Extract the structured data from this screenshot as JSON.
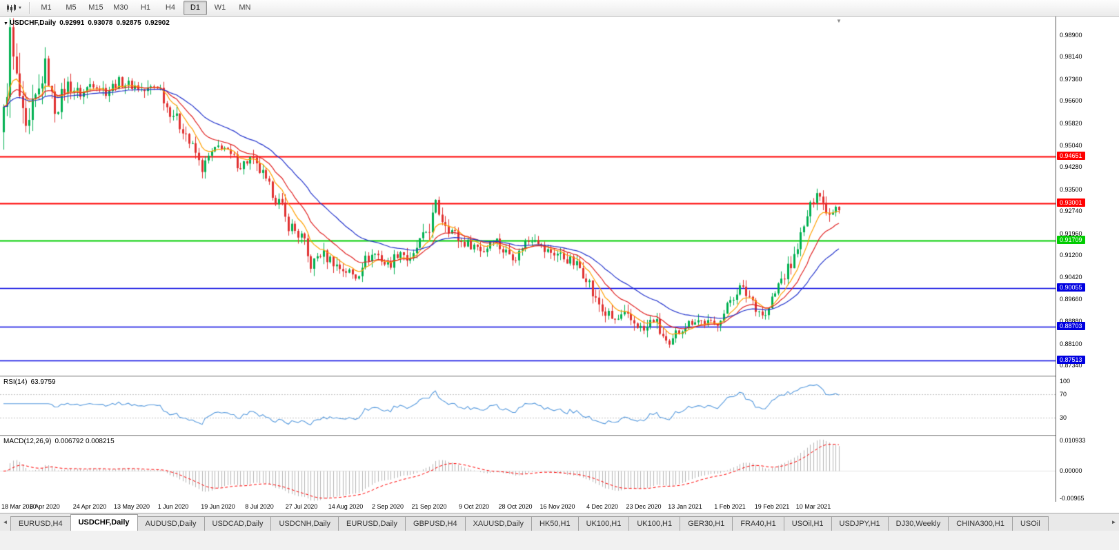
{
  "icons": {
    "caret_down": "▼",
    "chart_menu": "▼",
    "shift_marker": "▼",
    "tabs_left": "◄",
    "tabs_right": "►"
  },
  "toolbar": {
    "chart_type_icon": "candlestick-chart-icon",
    "timeframes": [
      "M1",
      "M5",
      "M15",
      "M30",
      "H1",
      "H4",
      "D1",
      "W1",
      "MN"
    ],
    "active_timeframe": "D1"
  },
  "chart_data": {
    "type": "candlestick",
    "symbol": "USDCHF",
    "timeframe": "Daily",
    "title": "USDCHF,Daily",
    "header": {
      "open": "0.92991",
      "high": "0.93078",
      "low": "0.92875",
      "close": "0.92902"
    },
    "price_axis_labels": [
      "0.98900",
      "0.98140",
      "0.97360",
      "0.96600",
      "0.95820",
      "0.95040",
      "0.94280",
      "0.93500",
      "0.92740",
      "0.91960",
      "0.91200",
      "0.90420",
      "0.89660",
      "0.88880",
      "0.88100",
      "0.87340"
    ],
    "horizontal_lines": [
      {
        "price": 0.94651,
        "label": "0.94651",
        "color": "#FF0000",
        "width": 2
      },
      {
        "price": 0.93001,
        "label": "0.93001",
        "color": "#FF0000",
        "width": 2
      },
      {
        "price": 0.91709,
        "label": "0.91709",
        "color": "#00CC00",
        "width": 2
      },
      {
        "price": 0.90055,
        "label": "0.90055",
        "color": "#0000E0",
        "width": 1.5
      },
      {
        "price": 0.88703,
        "label": "0.88703",
        "color": "#0000E0",
        "width": 1.5
      },
      {
        "price": 0.87513,
        "label": "0.87513",
        "color": "#0000E0",
        "width": 1.5
      }
    ],
    "time_labels": [
      {
        "label": "18 Mar 2020",
        "i": 0
      },
      {
        "label": "6 Apr 2020",
        "i": 13
      },
      {
        "label": "24 Apr 2020",
        "i": 27
      },
      {
        "label": "13 May 2020",
        "i": 40
      },
      {
        "label": "1 Jun 2020",
        "i": 53
      },
      {
        "label": "19 Jun 2020",
        "i": 67
      },
      {
        "label": "8 Jul 2020",
        "i": 80
      },
      {
        "label": "27 Jul 2020",
        "i": 93
      },
      {
        "label": "14 Aug 2020",
        "i": 107
      },
      {
        "label": "2 Sep 2020",
        "i": 120
      },
      {
        "label": "21 Sep 2020",
        "i": 133
      },
      {
        "label": "9 Oct 2020",
        "i": 147
      },
      {
        "label": "28 Oct 2020",
        "i": 160
      },
      {
        "label": "16 Nov 2020",
        "i": 173
      },
      {
        "label": "4 Dec 2020",
        "i": 187
      },
      {
        "label": "23 Dec 2020",
        "i": 200
      },
      {
        "label": "13 Jan 2021",
        "i": 213
      },
      {
        "label": "1 Feb 2021",
        "i": 227
      },
      {
        "label": "19 Feb 2021",
        "i": 240
      },
      {
        "label": "10 Mar 2021",
        "i": 253
      }
    ],
    "num_candles": 262,
    "price_range": {
      "top": 0.9955,
      "bottom": 0.8698
    },
    "up_color": "#00B050",
    "down_color": "#E03030",
    "moving_averages": [
      {
        "period": 8,
        "color": "#FFA000"
      },
      {
        "period": 16,
        "color": "#E02020"
      },
      {
        "period": 34,
        "color": "#2233CC"
      }
    ],
    "price_path": [
      [
        0,
        0.959
      ],
      [
        2,
        0.9875
      ],
      [
        4,
        0.972
      ],
      [
        7,
        0.9525
      ],
      [
        10,
        0.966
      ],
      [
        13,
        0.9775
      ],
      [
        16,
        0.9635
      ],
      [
        20,
        0.9715
      ],
      [
        24,
        0.9685
      ],
      [
        28,
        0.9725
      ],
      [
        32,
        0.9695
      ],
      [
        36,
        0.9725
      ],
      [
        40,
        0.9715
      ],
      [
        44,
        0.9695
      ],
      [
        48,
        0.9715
      ],
      [
        52,
        0.9625
      ],
      [
        56,
        0.9565
      ],
      [
        59,
        0.9495
      ],
      [
        62,
        0.9425
      ],
      [
        65,
        0.9475
      ],
      [
        68,
        0.9505
      ],
      [
        71,
        0.9465
      ],
      [
        74,
        0.9435
      ],
      [
        77,
        0.9455
      ],
      [
        80,
        0.9415
      ],
      [
        83,
        0.9355
      ],
      [
        86,
        0.9305
      ],
      [
        89,
        0.9225
      ],
      [
        93,
        0.9185
      ],
      [
        96,
        0.9085
      ],
      [
        99,
        0.9125
      ],
      [
        102,
        0.9105
      ],
      [
        105,
        0.9075
      ],
      [
        107,
        0.9065
      ],
      [
        110,
        0.9045
      ],
      [
        113,
        0.9105
      ],
      [
        116,
        0.9125
      ],
      [
        120,
        0.9085
      ],
      [
        124,
        0.9135
      ],
      [
        127,
        0.9095
      ],
      [
        130,
        0.9165
      ],
      [
        133,
        0.9215
      ],
      [
        135,
        0.9295
      ],
      [
        137,
        0.9245
      ],
      [
        140,
        0.9205
      ],
      [
        143,
        0.9165
      ],
      [
        147,
        0.9155
      ],
      [
        150,
        0.9135
      ],
      [
        153,
        0.9185
      ],
      [
        156,
        0.9135
      ],
      [
        160,
        0.9115
      ],
      [
        163,
        0.9165
      ],
      [
        166,
        0.9185
      ],
      [
        169,
        0.9135
      ],
      [
        173,
        0.9125
      ],
      [
        176,
        0.9105
      ],
      [
        179,
        0.9085
      ],
      [
        182,
        0.9045
      ],
      [
        185,
        0.896
      ],
      [
        188,
        0.8915
      ],
      [
        191,
        0.889
      ],
      [
        194,
        0.8905
      ],
      [
        197,
        0.8885
      ],
      [
        200,
        0.8855
      ],
      [
        203,
        0.8895
      ],
      [
        206,
        0.8835
      ],
      [
        208,
        0.879
      ],
      [
        210,
        0.8845
      ],
      [
        213,
        0.8875
      ],
      [
        216,
        0.8895
      ],
      [
        219,
        0.8885
      ],
      [
        222,
        0.8875
      ],
      [
        225,
        0.8915
      ],
      [
        227,
        0.8965
      ],
      [
        230,
        0.9005
      ],
      [
        233,
        0.8975
      ],
      [
        236,
        0.8925
      ],
      [
        238,
        0.8905
      ],
      [
        240,
        0.8965
      ],
      [
        243,
        0.9035
      ],
      [
        246,
        0.9085
      ],
      [
        249,
        0.9185
      ],
      [
        252,
        0.9285
      ],
      [
        254,
        0.9355
      ],
      [
        256,
        0.93
      ],
      [
        258,
        0.9265
      ],
      [
        260,
        0.93
      ],
      [
        261,
        0.929
      ]
    ],
    "volatility": [
      [
        0,
        0.017
      ],
      [
        5,
        0.014
      ],
      [
        10,
        0.01
      ],
      [
        16,
        0.007
      ],
      [
        25,
        0.0045
      ],
      [
        40,
        0.004
      ],
      [
        55,
        0.005
      ],
      [
        70,
        0.0042
      ],
      [
        85,
        0.005
      ],
      [
        100,
        0.0045
      ],
      [
        115,
        0.0038
      ],
      [
        133,
        0.005
      ],
      [
        150,
        0.0036
      ],
      [
        170,
        0.0038
      ],
      [
        187,
        0.0045
      ],
      [
        205,
        0.0042
      ],
      [
        220,
        0.0036
      ],
      [
        235,
        0.004
      ],
      [
        250,
        0.0048
      ],
      [
        261,
        0.0042
      ]
    ],
    "indicators": {
      "rsi": {
        "name": "RSI(14)",
        "value": "63.9759",
        "color": "#5599DD",
        "levels": [
          70,
          30
        ],
        "axis_labels": [
          {
            "v": 100,
            "label": "100"
          },
          {
            "v": 70,
            "label": "70"
          },
          {
            "v": 30,
            "label": "30"
          }
        ]
      },
      "macd": {
        "name": "MACD(12,26,9)",
        "values": "0.006792 0.008215",
        "histogram_color": "#B4B4B4",
        "signal_color": "#FF0000",
        "range": {
          "max": 0.010933,
          "min": -0.00965
        },
        "axis_labels": [
          {
            "v": 0.010933,
            "label": "0.010933"
          },
          {
            "v": 0,
            "label": "0.00000"
          },
          {
            "v": -0.00965,
            "label": "-0.00965"
          }
        ]
      }
    }
  },
  "tabs": {
    "items": [
      "EURUSD,H4",
      "USDCHF,Daily",
      "AUDUSD,Daily",
      "USDCAD,Daily",
      "USDCNH,Daily",
      "EURUSD,Daily",
      "GBPUSD,H4",
      "XAUUSD,Daily",
      "HK50,H1",
      "UK100,H1",
      "UK100,H1",
      "GER30,H1",
      "FRA40,H1",
      "USOil,H1",
      "USDJPY,H1",
      "DJ30,Weekly",
      "CHINA300,H1",
      "USOil"
    ],
    "active": "USDCHF,Daily"
  }
}
